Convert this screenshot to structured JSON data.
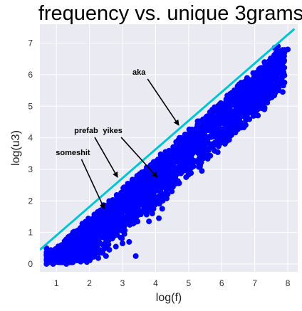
{
  "chart_data": {
    "type": "scatter",
    "title": "frequency vs. unique 3grams",
    "xlabel": "log(f)",
    "ylabel": "log(u3)",
    "xlim": [
      0.5,
      8.3
    ],
    "ylim": [
      -0.25,
      7.6
    ],
    "xticks": [
      1,
      2,
      3,
      4,
      5,
      6,
      7,
      8
    ],
    "yticks": [
      0,
      1,
      2,
      3,
      4,
      5,
      6,
      7
    ],
    "grid": true,
    "colors": {
      "points": "#0000ff",
      "fit_line": "#00c5d6",
      "plot_background": "#eaeaf2",
      "gridline": "#ffffff",
      "annotation": "#000000"
    },
    "fit_line": {
      "x": [
        0.5,
        8.2
      ],
      "y": [
        0.45,
        7.45
      ]
    },
    "series": [
      {
        "points": [
          [
            0.7,
            0.0
          ],
          [
            0.9,
            0.0
          ],
          [
            1.3,
            0.0
          ],
          [
            0.7,
            0.3
          ],
          [
            0.9,
            0.25
          ],
          [
            1.1,
            0.3
          ],
          [
            1.4,
            0.3
          ],
          [
            0.7,
            0.5
          ],
          [
            1.0,
            0.45
          ],
          [
            1.6,
            0.35
          ],
          [
            1.8,
            0.3
          ],
          [
            2.1,
            0.35
          ],
          [
            2.4,
            0.35
          ],
          [
            2.6,
            0.45
          ],
          [
            2.5,
            0.25
          ],
          [
            2.8,
            0.55
          ],
          [
            3.0,
            0.65
          ],
          [
            3.2,
            0.7
          ],
          [
            3.4,
            0.25
          ],
          [
            2.6,
            0.9
          ],
          [
            2.8,
            1.15
          ],
          [
            3.0,
            1.4
          ],
          [
            3.3,
            1.5
          ],
          [
            3.5,
            1.7
          ],
          [
            3.8,
            1.35
          ],
          [
            3.9,
            1.6
          ],
          [
            4.1,
            1.45
          ],
          [
            4.2,
            1.75
          ],
          [
            4.0,
            2.35
          ],
          [
            4.2,
            2.0
          ],
          [
            4.6,
            2.7
          ],
          [
            5.0,
            3.0
          ],
          [
            5.4,
            2.95
          ],
          [
            6.2,
            4.2
          ],
          [
            6.3,
            4.5
          ],
          [
            6.6,
            5.0
          ],
          [
            7.2,
            6.0
          ],
          [
            7.5,
            6.0
          ],
          [
            7.3,
            6.4
          ],
          [
            7.6,
            6.5
          ],
          [
            7.8,
            6.75
          ],
          [
            7.6,
            6.85
          ],
          [
            8.0,
            6.8
          ],
          [
            7.7,
            6.9
          ]
        ]
      }
    ],
    "annotations": [
      {
        "text": "aka",
        "x": 3.5,
        "y": 6.0,
        "target": [
          4.7,
          4.4
        ]
      },
      {
        "text": "prefab",
        "x": 1.9,
        "y": 4.15,
        "target": [
          2.85,
          2.75
        ]
      },
      {
        "text": "yikes",
        "x": 2.7,
        "y": 4.15,
        "target": [
          4.05,
          2.75
        ]
      },
      {
        "text": "someshit",
        "x": 1.5,
        "y": 3.45,
        "target": [
          2.45,
          1.75
        ]
      }
    ]
  }
}
